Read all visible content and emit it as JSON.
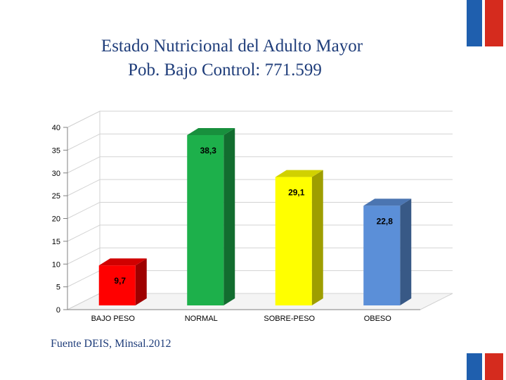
{
  "title_line1": "Estado Nutricional del Adulto Mayor",
  "title_line2": "Pob. Bajo Control: 771.599",
  "source": "Fuente DEIS, Minsal.2012",
  "flag_colors": {
    "blue": "#1f5fae",
    "red": "#d52b1e"
  },
  "chart_data": {
    "type": "bar",
    "categories": [
      "BAJO PESO",
      "NORMAL",
      "SOBRE-PESO",
      "OBESO"
    ],
    "values": [
      9.7,
      38.3,
      29.1,
      22.8
    ],
    "value_labels": [
      "9,7",
      "38,3",
      "29,1",
      "22,8"
    ],
    "colors": [
      "#ff0000",
      "#1db04b",
      "#ffff00",
      "#5b8fd8"
    ],
    "ylim": [
      0,
      40
    ],
    "yticks": [
      0,
      5,
      10,
      15,
      20,
      25,
      30,
      35,
      40
    ],
    "grid": true,
    "style": "3d"
  }
}
